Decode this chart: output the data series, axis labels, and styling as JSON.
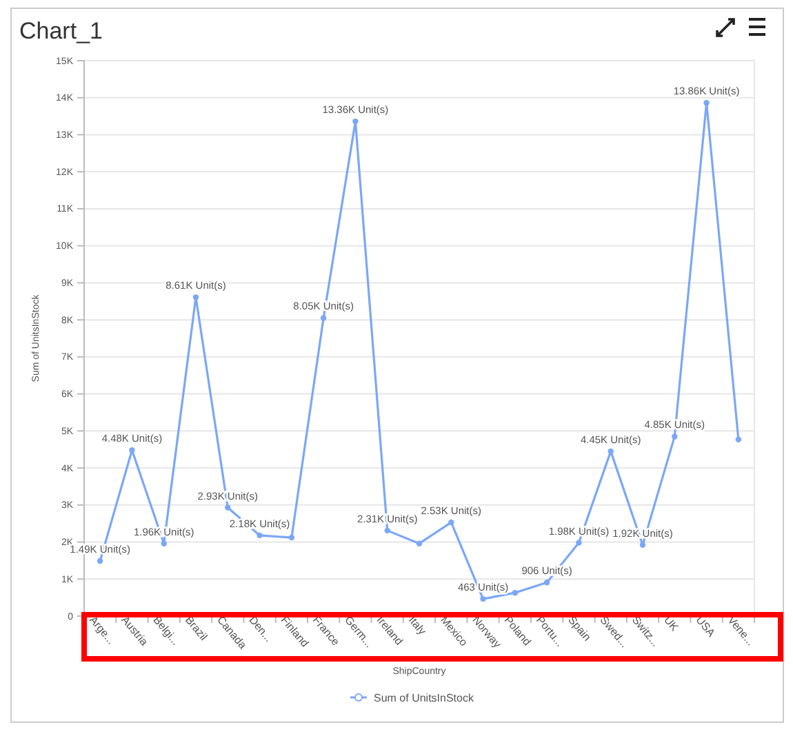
{
  "chart_data": {
    "type": "line",
    "title": "Chart_1",
    "xlabel": "ShipCountry",
    "ylabel": "Sum of UnitsInStock",
    "categories": [
      "Arge...",
      "Austria",
      "Belgi...",
      "Brazil",
      "Canada",
      "Den...",
      "Finland",
      "France",
      "Germ...",
      "Ireland",
      "Italy",
      "Mexico",
      "Norway",
      "Poland",
      "Portu...",
      "Spain",
      "Swed...",
      "Switz...",
      "UK",
      "USA",
      "Vene..."
    ],
    "series": [
      {
        "name": "Sum of UnitsInStock",
        "color": "#7ba7f7",
        "values": [
          1490,
          4480,
          1960,
          8610,
          2930,
          2180,
          2120,
          8050,
          13360,
          2310,
          1960,
          2530,
          463,
          630,
          906,
          1980,
          4450,
          1920,
          4850,
          13860,
          4770
        ],
        "value_labels": [
          "1.49K Unit(s)",
          "4.48K Unit(s)",
          "1.96K Unit(s)",
          "8.61K Unit(s)",
          "2.93K Unit(s)",
          "2.18K Unit(s)",
          null,
          "8.05K Unit(s)",
          "13.36K Unit(s)",
          "2.31K Unit(s)",
          null,
          "2.53K Unit(s)",
          "463 Unit(s)",
          null,
          "906 Unit(s)",
          "1.98K Unit(s)",
          "4.45K Unit(s)",
          "1.92K Unit(s)",
          "4.85K Unit(s)",
          "13.86K Unit(s)",
          null
        ]
      }
    ],
    "ylim": [
      0,
      15000
    ],
    "yticks": [
      {
        "value": 0,
        "label": "0"
      },
      {
        "value": 1000,
        "label": "1K"
      },
      {
        "value": 2000,
        "label": "2K"
      },
      {
        "value": 3000,
        "label": "3K"
      },
      {
        "value": 4000,
        "label": "4K"
      },
      {
        "value": 5000,
        "label": "5K"
      },
      {
        "value": 6000,
        "label": "6K"
      },
      {
        "value": 7000,
        "label": "7K"
      },
      {
        "value": 8000,
        "label": "8K"
      },
      {
        "value": 9000,
        "label": "9K"
      },
      {
        "value": 10000,
        "label": "10K"
      },
      {
        "value": 11000,
        "label": "11K"
      },
      {
        "value": 12000,
        "label": "12K"
      },
      {
        "value": 13000,
        "label": "13K"
      },
      {
        "value": 14000,
        "label": "14K"
      },
      {
        "value": 15000,
        "label": "15K"
      }
    ],
    "grid": "y",
    "legend": "bottom",
    "marker": "circle",
    "line_style": "solid"
  }
}
